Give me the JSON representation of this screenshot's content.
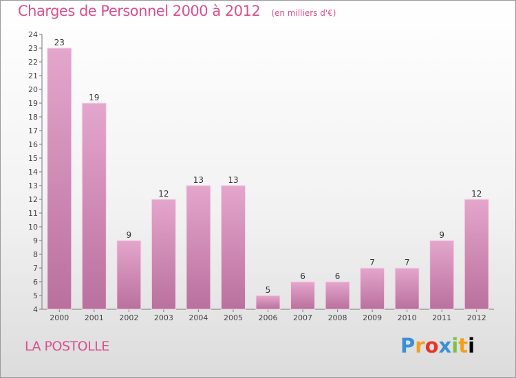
{
  "header": {
    "title": "Charges de Personnel 2000 à 2012",
    "subtitle": "(en milliers d'€)"
  },
  "footer": {
    "commune": "LA POSTOLLE",
    "logo_letters": [
      "P",
      "r",
      "o",
      "x",
      "i",
      "t",
      "i"
    ]
  },
  "colors": {
    "bar_top": "#e4a6cc",
    "bar_bottom": "#b9709d",
    "accent": "#d7508d"
  },
  "chart_data": {
    "type": "bar",
    "categories": [
      "2000",
      "2001",
      "2002",
      "2003",
      "2004",
      "2005",
      "2006",
      "2007",
      "2008",
      "2009",
      "2010",
      "2011",
      "2012"
    ],
    "values": [
      23,
      19,
      9,
      12,
      13,
      13,
      5,
      6,
      6,
      7,
      7,
      9,
      12
    ],
    "title": "Charges de Personnel 2000 à 2012",
    "xlabel": "",
    "ylabel": "",
    "ylim": [
      4,
      24
    ],
    "yticks": [
      4,
      5,
      6,
      7,
      8,
      9,
      10,
      11,
      12,
      13,
      14,
      15,
      16,
      17,
      18,
      19,
      20,
      21,
      22,
      23,
      24
    ],
    "grid": false,
    "legend": "none"
  }
}
